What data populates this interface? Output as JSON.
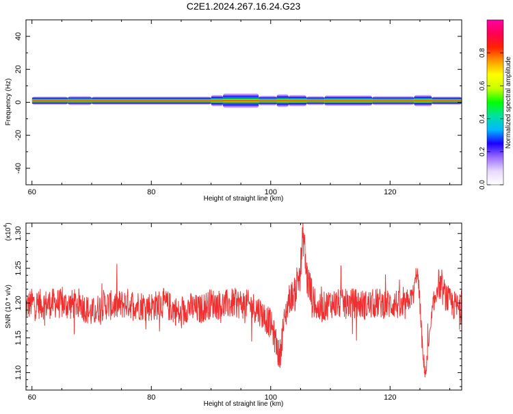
{
  "figure": {
    "title": "C2E1.2024.267.16.24.G23"
  },
  "chart_data": [
    {
      "type": "heatmap",
      "xlabel": "Height of straight line (km)",
      "ylabel": "Frequency (Hz)",
      "xlim": [
        59,
        132
      ],
      "ylim": [
        -50,
        50
      ],
      "x_ticks": [
        60,
        80,
        100,
        120
      ],
      "y_ticks": [
        -40,
        -20,
        0,
        20,
        40
      ],
      "grid": false,
      "band": {
        "center_hz": 1,
        "x_start_km": 60,
        "x_end_km": 132,
        "segments": [
          {
            "x0": 60,
            "x1": 66,
            "width_hz": 3
          },
          {
            "x0": 66,
            "x1": 70,
            "width_hz": 3.5
          },
          {
            "x0": 70,
            "x1": 90,
            "width_hz": 3
          },
          {
            "x0": 90,
            "x1": 92,
            "width_hz": 5
          },
          {
            "x0": 92,
            "x1": 98,
            "width_hz": 7
          },
          {
            "x0": 98,
            "x1": 101,
            "width_hz": 4
          },
          {
            "x0": 101,
            "x1": 103,
            "width_hz": 6
          },
          {
            "x0": 103,
            "x1": 106,
            "width_hz": 5
          },
          {
            "x0": 106,
            "x1": 109,
            "width_hz": 3.5
          },
          {
            "x0": 109,
            "x1": 117,
            "width_hz": 4.5
          },
          {
            "x0": 117,
            "x1": 124,
            "width_hz": 3.5
          },
          {
            "x0": 124,
            "x1": 127,
            "width_hz": 5
          },
          {
            "x0": 127,
            "x1": 132,
            "width_hz": 3
          }
        ]
      },
      "colorbar": {
        "label": "Normalized spectral amplitude",
        "range": [
          0,
          1
        ],
        "ticks": [
          "0.0",
          "0.2",
          "0.4",
          "0.6",
          "0.8"
        ],
        "colormap": [
          "#ffffff",
          "#e8d8ff",
          "#9a6cff",
          "#1a00ff",
          "#00b8ff",
          "#00e0a0",
          "#00ff00",
          "#c8ff00",
          "#ffff00",
          "#ff9a00",
          "#ff2200",
          "#ff0055",
          "#ff00a0"
        ]
      }
    },
    {
      "type": "line",
      "xlabel": "Height of straight line (km)",
      "ylabel": "SNR (10 * v/v)",
      "y_multiplier": "(x10",
      "y_multiplier_exp": "4",
      "y_multiplier_close": ")",
      "xlim": [
        59,
        132
      ],
      "ylim": [
        1.075,
        1.315
      ],
      "x_ticks": [
        60,
        80,
        100,
        120
      ],
      "y_ticks": [
        "1.10",
        "1.15",
        "1.20",
        "1.25",
        "1.30"
      ],
      "grid": false,
      "series": [
        {
          "color": "#f03030",
          "x": [
            59,
            60,
            62,
            64,
            66,
            68,
            70,
            72,
            74,
            76,
            78,
            80,
            82,
            84,
            85,
            86,
            88,
            90,
            92,
            94,
            96,
            97,
            98,
            99,
            100,
            101,
            101.5,
            102,
            103,
            104,
            105,
            105.5,
            106,
            107,
            108,
            110,
            112,
            114,
            116,
            118,
            120,
            121,
            122,
            123,
            124,
            124.5,
            125,
            125.5,
            126,
            127,
            128,
            130,
            132
          ],
          "y": [
            1.195,
            1.2,
            1.198,
            1.2,
            1.197,
            1.2,
            1.185,
            1.198,
            1.196,
            1.2,
            1.197,
            1.195,
            1.2,
            1.19,
            1.18,
            1.195,
            1.19,
            1.2,
            1.197,
            1.2,
            1.198,
            1.195,
            1.19,
            1.18,
            1.17,
            1.14,
            1.12,
            1.16,
            1.205,
            1.215,
            1.25,
            1.3,
            1.24,
            1.205,
            1.19,
            1.2,
            1.198,
            1.2,
            1.197,
            1.2,
            1.198,
            1.2,
            1.19,
            1.2,
            1.215,
            1.25,
            1.2,
            1.12,
            1.1,
            1.18,
            1.23,
            1.2,
            1.19
          ]
        }
      ]
    }
  ]
}
